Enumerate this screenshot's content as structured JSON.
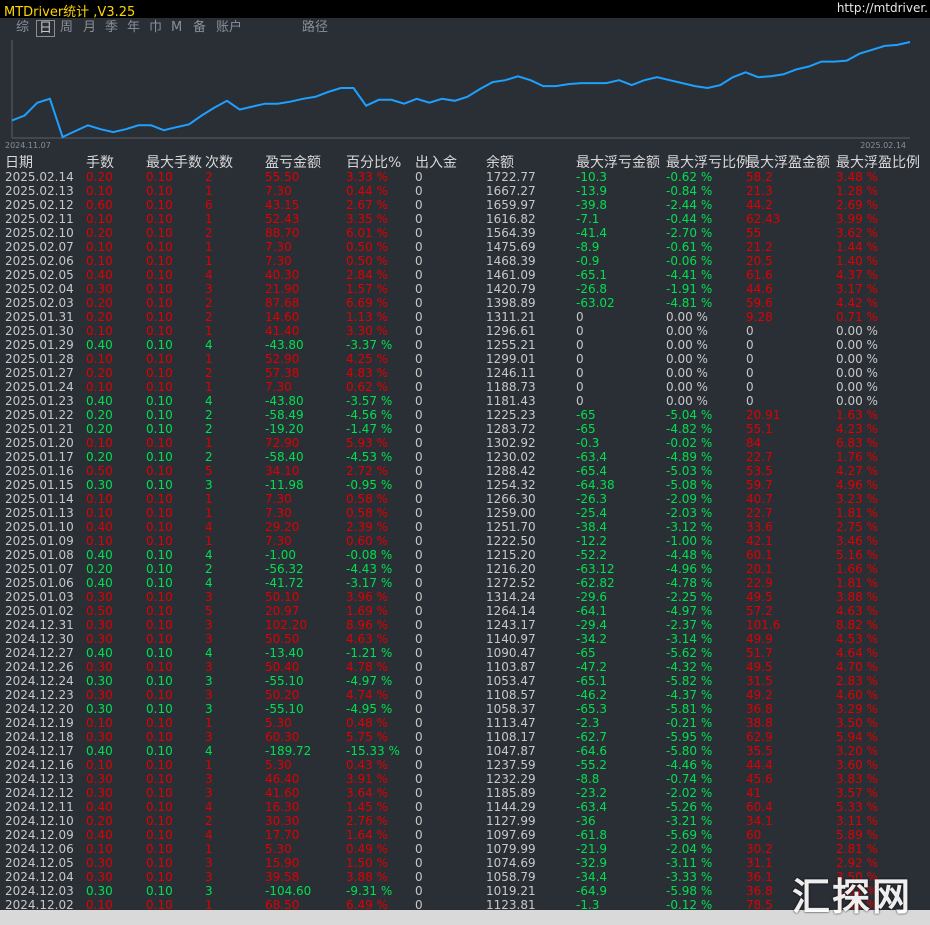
{
  "header": {
    "title": "MTDriver统计 ,V3.25",
    "url": "http://mtdriver."
  },
  "tabs": {
    "items": [
      "综",
      "日",
      "周",
      "月",
      "季",
      "年",
      "巾",
      "M",
      "备",
      "账户",
      "路径"
    ],
    "selected": 1
  },
  "curve": {
    "x_labels": [
      "2024.11.07",
      "2025.02.14"
    ],
    "color": "#1ea0ff",
    "ylim": [
      0,
      100
    ],
    "values": [
      18,
      23,
      36,
      40,
      1,
      7,
      13,
      9,
      6,
      9,
      13,
      13,
      8,
      11,
      14,
      23,
      31,
      38,
      29,
      32,
      35,
      35,
      37,
      40,
      42,
      47,
      51,
      51,
      33,
      39,
      39,
      35,
      40,
      36,
      40,
      38,
      42,
      50,
      57,
      59,
      63,
      59,
      53,
      53,
      55,
      56,
      56,
      56,
      59,
      54,
      59,
      62,
      59,
      56,
      53,
      51,
      54,
      62,
      67,
      62,
      63,
      65,
      70,
      73,
      78,
      78,
      79,
      86,
      90,
      94,
      95,
      98
    ]
  },
  "table": {
    "header": [
      "日期",
      "手数",
      "最大手数",
      "次数",
      "盈亏金额",
      "百分比%",
      "出入金",
      "余额",
      "最大浮亏金额",
      "最大浮亏比例",
      "最大浮盈金额",
      "最大浮盈比例"
    ],
    "rows": [
      [
        "2025.02.14",
        "0.20",
        "0.10",
        "2",
        "55.50",
        "3.33 %",
        "0",
        "1722.77",
        "-10.3",
        "-0.62 %",
        "58.2",
        "3.48 %"
      ],
      [
        "2025.02.13",
        "0.10",
        "0.10",
        "1",
        "7.30",
        "0.44 %",
        "0",
        "1667.27",
        "-13.9",
        "-0.84 %",
        "21.3",
        "1.28 %"
      ],
      [
        "2025.02.12",
        "0.60",
        "0.10",
        "6",
        "43.15",
        "2.67 %",
        "0",
        "1659.97",
        "-39.8",
        "-2.44 %",
        "44.2",
        "2.69 %"
      ],
      [
        "2025.02.11",
        "0.10",
        "0.10",
        "1",
        "52.43",
        "3.35 %",
        "0",
        "1616.82",
        "-7.1",
        "-0.44 %",
        "62.43",
        "3.99 %"
      ],
      [
        "2025.02.10",
        "0.20",
        "0.10",
        "2",
        "88.70",
        "6.01 %",
        "0",
        "1564.39",
        "-41.4",
        "-2.70 %",
        "55",
        "3.62 %"
      ],
      [
        "2025.02.07",
        "0.10",
        "0.10",
        "1",
        "7.30",
        "0.50 %",
        "0",
        "1475.69",
        "-8.9",
        "-0.61 %",
        "21.2",
        "1.44 %"
      ],
      [
        "2025.02.06",
        "0.10",
        "0.10",
        "1",
        "7.30",
        "0.50 %",
        "0",
        "1468.39",
        "-0.9",
        "-0.06 %",
        "20.5",
        "1.40 %"
      ],
      [
        "2025.02.05",
        "0.40",
        "0.10",
        "4",
        "40.30",
        "2.84 %",
        "0",
        "1461.09",
        "-65.1",
        "-4.41 %",
        "61.6",
        "4.37 %"
      ],
      [
        "2025.02.04",
        "0.30",
        "0.10",
        "3",
        "21.90",
        "1.57 %",
        "0",
        "1420.79",
        "-26.8",
        "-1.91 %",
        "44.6",
        "3.17 %"
      ],
      [
        "2025.02.03",
        "0.20",
        "0.10",
        "2",
        "87.68",
        "6.69 %",
        "0",
        "1398.89",
        "-63.02",
        "-4.81 %",
        "59.6",
        "4.42 %"
      ],
      [
        "2025.01.31",
        "0.20",
        "0.10",
        "2",
        "14.60",
        "1.13 %",
        "0",
        "1311.21",
        "0",
        "0.00 %",
        "9.28",
        "0.71 %"
      ],
      [
        "2025.01.30",
        "0.10",
        "0.10",
        "1",
        "41.40",
        "3.30 %",
        "0",
        "1296.61",
        "0",
        "0.00 %",
        "0",
        "0.00 %"
      ],
      [
        "2025.01.29",
        "0.40",
        "0.10",
        "4",
        "-43.80",
        "-3.37 %",
        "0",
        "1255.21",
        "0",
        "0.00 %",
        "0",
        "0.00 %"
      ],
      [
        "2025.01.28",
        "0.10",
        "0.10",
        "1",
        "52.90",
        "4.25 %",
        "0",
        "1299.01",
        "0",
        "0.00 %",
        "0",
        "0.00 %"
      ],
      [
        "2025.01.27",
        "0.20",
        "0.10",
        "2",
        "57.38",
        "4.83 %",
        "0",
        "1246.11",
        "0",
        "0.00 %",
        "0",
        "0.00 %"
      ],
      [
        "2025.01.24",
        "0.10",
        "0.10",
        "1",
        "7.30",
        "0.62 %",
        "0",
        "1188.73",
        "0",
        "0.00 %",
        "0",
        "0.00 %"
      ],
      [
        "2025.01.23",
        "0.40",
        "0.10",
        "4",
        "-43.80",
        "-3.57 %",
        "0",
        "1181.43",
        "0",
        "0.00 %",
        "0",
        "0.00 %"
      ],
      [
        "2025.01.22",
        "0.20",
        "0.10",
        "2",
        "-58.49",
        "-4.56 %",
        "0",
        "1225.23",
        "-65",
        "-5.04 %",
        "20.91",
        "1.63 %"
      ],
      [
        "2025.01.21",
        "0.20",
        "0.10",
        "2",
        "-19.20",
        "-1.47 %",
        "0",
        "1283.72",
        "-65",
        "-4.82 %",
        "55.1",
        "4.23 %"
      ],
      [
        "2025.01.20",
        "0.10",
        "0.10",
        "1",
        "72.90",
        "5.93 %",
        "0",
        "1302.92",
        "-0.3",
        "-0.02 %",
        "84",
        "6.83 %"
      ],
      [
        "2025.01.17",
        "0.20",
        "0.10",
        "2",
        "-58.40",
        "-4.53 %",
        "0",
        "1230.02",
        "-63.4",
        "-4.89 %",
        "22.7",
        "1.76 %"
      ],
      [
        "2025.01.16",
        "0.50",
        "0.10",
        "5",
        "34.10",
        "2.72 %",
        "0",
        "1288.42",
        "-65.4",
        "-5.03 %",
        "53.5",
        "4.27 %"
      ],
      [
        "2025.01.15",
        "0.30",
        "0.10",
        "3",
        "-11.98",
        "-0.95 %",
        "0",
        "1254.32",
        "-64.38",
        "-5.08 %",
        "59.7",
        "4.96 %"
      ],
      [
        "2025.01.14",
        "0.10",
        "0.10",
        "1",
        "7.30",
        "0.58 %",
        "0",
        "1266.30",
        "-26.3",
        "-2.09 %",
        "40.7",
        "3.23 %"
      ],
      [
        "2025.01.13",
        "0.10",
        "0.10",
        "1",
        "7.30",
        "0.58 %",
        "0",
        "1259.00",
        "-25.4",
        "-2.03 %",
        "22.7",
        "1.81 %"
      ],
      [
        "2025.01.10",
        "0.40",
        "0.10",
        "4",
        "29.20",
        "2.39 %",
        "0",
        "1251.70",
        "-38.4",
        "-3.12 %",
        "33.6",
        "2.75 %"
      ],
      [
        "2025.01.09",
        "0.10",
        "0.10",
        "1",
        "7.30",
        "0.60 %",
        "0",
        "1222.50",
        "-12.2",
        "-1.00 %",
        "42.1",
        "3.46 %"
      ],
      [
        "2025.01.08",
        "0.40",
        "0.10",
        "4",
        "-1.00",
        "-0.08 %",
        "0",
        "1215.20",
        "-52.2",
        "-4.48 %",
        "60.1",
        "5.16 %"
      ],
      [
        "2025.01.07",
        "0.20",
        "0.10",
        "2",
        "-56.32",
        "-4.43 %",
        "0",
        "1216.20",
        "-63.12",
        "-4.96 %",
        "20.1",
        "1.66 %"
      ],
      [
        "2025.01.06",
        "0.40",
        "0.10",
        "4",
        "-41.72",
        "-3.17 %",
        "0",
        "1272.52",
        "-62.82",
        "-4.78 %",
        "22.9",
        "1.81 %"
      ],
      [
        "2025.01.03",
        "0.30",
        "0.10",
        "3",
        "50.10",
        "3.96 %",
        "0",
        "1314.24",
        "-29.6",
        "-2.25 %",
        "49.5",
        "3.88 %"
      ],
      [
        "2025.01.02",
        "0.50",
        "0.10",
        "5",
        "20.97",
        "1.69 %",
        "0",
        "1264.14",
        "-64.1",
        "-4.97 %",
        "57.2",
        "4.63 %"
      ],
      [
        "2024.12.31",
        "0.30",
        "0.10",
        "3",
        "102.20",
        "8.96 %",
        "0",
        "1243.17",
        "-29.4",
        "-2.37 %",
        "101.6",
        "8.82 %"
      ],
      [
        "2024.12.30",
        "0.30",
        "0.10",
        "3",
        "50.50",
        "4.63 %",
        "0",
        "1140.97",
        "-34.2",
        "-3.14 %",
        "49.9",
        "4.53 %"
      ],
      [
        "2024.12.27",
        "0.40",
        "0.10",
        "4",
        "-13.40",
        "-1.21 %",
        "0",
        "1090.47",
        "-65",
        "-5.62 %",
        "51.7",
        "4.64 %"
      ],
      [
        "2024.12.26",
        "0.30",
        "0.10",
        "3",
        "50.40",
        "4.78 %",
        "0",
        "1103.87",
        "-47.2",
        "-4.32 %",
        "49.5",
        "4.70 %"
      ],
      [
        "2024.12.24",
        "0.30",
        "0.10",
        "3",
        "-55.10",
        "-4.97 %",
        "0",
        "1053.47",
        "-65.1",
        "-5.82 %",
        "31.5",
        "2.83 %"
      ],
      [
        "2024.12.23",
        "0.30",
        "0.10",
        "3",
        "50.20",
        "4.74 %",
        "0",
        "1108.57",
        "-46.2",
        "-4.37 %",
        "49.2",
        "4.60 %"
      ],
      [
        "2024.12.20",
        "0.30",
        "0.10",
        "3",
        "-55.10",
        "-4.95 %",
        "0",
        "1058.37",
        "-65.3",
        "-5.81 %",
        "36.8",
        "3.29 %"
      ],
      [
        "2024.12.19",
        "0.10",
        "0.10",
        "1",
        "5.30",
        "0.48 %",
        "0",
        "1113.47",
        "-2.3",
        "-0.21 %",
        "38.8",
        "3.50 %"
      ],
      [
        "2024.12.18",
        "0.30",
        "0.10",
        "3",
        "60.30",
        "5.75 %",
        "0",
        "1108.17",
        "-62.7",
        "-5.95 %",
        "62.9",
        "5.94 %"
      ],
      [
        "2024.12.17",
        "0.40",
        "0.10",
        "4",
        "-189.72",
        "-15.33 %",
        "0",
        "1047.87",
        "-64.6",
        "-5.80 %",
        "35.5",
        "3.20 %"
      ],
      [
        "2024.12.16",
        "0.10",
        "0.10",
        "1",
        "5.30",
        "0.43 %",
        "0",
        "1237.59",
        "-55.2",
        "-4.46 %",
        "44.4",
        "3.60 %"
      ],
      [
        "2024.12.13",
        "0.30",
        "0.10",
        "3",
        "46.40",
        "3.91 %",
        "0",
        "1232.29",
        "-8.8",
        "-0.74 %",
        "45.6",
        "3.83 %"
      ],
      [
        "2024.12.12",
        "0.30",
        "0.10",
        "3",
        "41.60",
        "3.64 %",
        "0",
        "1185.89",
        "-23.2",
        "-2.02 %",
        "41",
        "3.57 %"
      ],
      [
        "2024.12.11",
        "0.40",
        "0.10",
        "4",
        "16.30",
        "1.45 %",
        "0",
        "1144.29",
        "-63.4",
        "-5.26 %",
        "60.4",
        "5.33 %"
      ],
      [
        "2024.12.10",
        "0.20",
        "0.10",
        "2",
        "30.30",
        "2.76 %",
        "0",
        "1127.99",
        "-36",
        "-3.21 %",
        "34.1",
        "3.11 %"
      ],
      [
        "2024.12.09",
        "0.40",
        "0.10",
        "4",
        "17.70",
        "1.64 %",
        "0",
        "1097.69",
        "-61.8",
        "-5.69 %",
        "60",
        "5.89 %"
      ],
      [
        "2024.12.06",
        "0.10",
        "0.10",
        "1",
        "5.30",
        "0.49 %",
        "0",
        "1079.99",
        "-21.9",
        "-2.04 %",
        "30.2",
        "2.81 %"
      ],
      [
        "2024.12.05",
        "0.30",
        "0.10",
        "3",
        "15.90",
        "1.50 %",
        "0",
        "1074.69",
        "-32.9",
        "-3.11 %",
        "31.1",
        "2.92 %"
      ],
      [
        "2024.12.04",
        "0.30",
        "0.10",
        "3",
        "39.58",
        "3.88 %",
        "0",
        "1058.79",
        "-34.4",
        "-3.33 %",
        "36.1",
        "3.50 %"
      ],
      [
        "2024.12.03",
        "0.30",
        "0.10",
        "3",
        "-104.60",
        "-9.31 %",
        "0",
        "1019.21",
        "-64.9",
        "-5.98 %",
        "36.8",
        "3.61 %"
      ],
      [
        "2024.12.02",
        "0.10",
        "0.10",
        "1",
        "68.50",
        "6.49 %",
        "0",
        "1123.81",
        "-1.3",
        "-0.12 %",
        "78.5",
        "7.44 %"
      ]
    ]
  },
  "watermark": "汇探网"
}
